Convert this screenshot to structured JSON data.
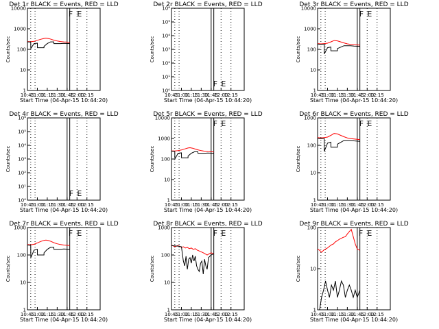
{
  "page": {
    "background": "#ffffff"
  },
  "colors": {
    "events": "#000000",
    "lld": "#ff0000",
    "axes": "#000000"
  },
  "x_tick_labels": [
    "10:45",
    "11:00",
    "11:15",
    "11:30",
    "11:45",
    "12:00",
    "12:15"
  ],
  "x_axis_label": "Start Time (04-Apr-15 10:44:20)",
  "y_axis_label": "Counts/sec",
  "chart_data": [
    {
      "id": "p1",
      "type": "line",
      "title": "Det 1r BLACK = Events, RED = LLD",
      "xlim": [
        0,
        110
      ],
      "ylim": [
        1,
        10000
      ],
      "yscale": "log",
      "ytick_labels": [
        "1",
        "10",
        "100",
        "1000",
        "10000"
      ],
      "vertical_lines": [
        5,
        11.5
      ],
      "bars": [
        60,
        64
      ],
      "markers": [
        "F",
        "E"
      ],
      "marker_x": [
        60,
        73
      ],
      "marker_side": "top",
      "series": [
        {
          "name": "LLD",
          "color": "#ff0000",
          "x": [
            0,
            5,
            10,
            15,
            20,
            25,
            28,
            32,
            36,
            40,
            45,
            50,
            55,
            60,
            64
          ],
          "values": [
            240,
            235,
            245,
            275,
            310,
            340,
            350,
            335,
            310,
            280,
            255,
            240,
            230,
            225,
            220
          ]
        },
        {
          "name": "Events",
          "color": "#000000",
          "x": [
            0,
            5,
            5.1,
            10,
            15,
            15.1,
            25,
            25.1,
            30,
            35,
            40,
            40.1,
            50,
            55,
            64
          ],
          "values": [
            230,
            225,
            110,
            190,
            200,
            120,
            120,
            140,
            190,
            230,
            230,
            190,
            190,
            195,
            190
          ]
        }
      ]
    },
    {
      "id": "p2",
      "type": "line",
      "title": "Det 2r BLACK = Events, RED = LLD",
      "xlim": [
        0,
        110
      ],
      "ylim": [
        1,
        1000000
      ],
      "yscale": "log",
      "ytick_labels": [
        "10⁰",
        "10¹",
        "10²",
        "10³",
        "10⁴",
        "10⁵",
        "10⁶"
      ],
      "vertical_lines": [
        5,
        11.5
      ],
      "bars": [
        60,
        64
      ],
      "markers": [
        "F",
        "E"
      ],
      "marker_x": [
        61,
        73
      ],
      "marker_side": "bottom",
      "series": []
    },
    {
      "id": "p3",
      "type": "line",
      "title": "Det 3r BLACK = Events, RED = LLD",
      "xlim": [
        0,
        110
      ],
      "ylim": [
        1,
        10000
      ],
      "yscale": "log",
      "ytick_labels": [
        "1",
        "10",
        "100",
        "1000",
        "10000"
      ],
      "vertical_lines": [
        5,
        11.5
      ],
      "bars": [
        60,
        64
      ],
      "markers": [
        "F",
        "E"
      ],
      "marker_x": [
        61,
        73
      ],
      "marker_side": "top",
      "series": [
        {
          "name": "LLD",
          "color": "#ff0000",
          "x": [
            0,
            5,
            10,
            15,
            20,
            25,
            30,
            35,
            40,
            45,
            50,
            55,
            60,
            64
          ],
          "values": [
            190,
            185,
            190,
            200,
            230,
            270,
            260,
            230,
            205,
            185,
            175,
            170,
            165,
            160
          ]
        },
        {
          "name": "Events",
          "color": "#000000",
          "x": [
            0,
            5,
            10,
            10.1,
            15,
            20,
            20.1,
            30,
            30.1,
            40,
            50,
            55,
            64
          ],
          "values": [
            180,
            175,
            180,
            60,
            120,
            130,
            85,
            85,
            110,
            150,
            150,
            145,
            140
          ]
        }
      ]
    },
    {
      "id": "p4",
      "type": "line",
      "title": "Det 4r BLACK = Events, RED = LLD",
      "xlim": [
        0,
        110
      ],
      "ylim": [
        1,
        1000000
      ],
      "yscale": "log",
      "ytick_labels": [
        "10⁰",
        "10¹",
        "10²",
        "10³",
        "10⁴",
        "10⁵",
        "10⁶"
      ],
      "vertical_lines": [
        5,
        11.5
      ],
      "bars": [
        60,
        64
      ],
      "markers": [
        "F",
        "E"
      ],
      "marker_x": [
        61,
        73
      ],
      "marker_side": "bottom",
      "series": []
    },
    {
      "id": "p5",
      "type": "line",
      "title": "Det 5r BLACK = Events, RED = LLD",
      "xlim": [
        0,
        110
      ],
      "ylim": [
        1,
        10000
      ],
      "yscale": "log",
      "ytick_labels": [
        "1",
        "10",
        "100",
        "1000",
        "10000"
      ],
      "vertical_lines": [
        5,
        11.5
      ],
      "bars": [
        60,
        64
      ],
      "markers": [
        "F",
        "E"
      ],
      "marker_x": [
        61,
        73
      ],
      "marker_side": "top",
      "series": [
        {
          "name": "LLD",
          "color": "#ff0000",
          "x": [
            0,
            5,
            10,
            15,
            20,
            25,
            28,
            32,
            36,
            40,
            45,
            50,
            55,
            60,
            64
          ],
          "values": [
            250,
            245,
            255,
            275,
            310,
            345,
            355,
            335,
            305,
            280,
            255,
            240,
            230,
            225,
            220
          ]
        },
        {
          "name": "Events",
          "color": "#000000",
          "x": [
            0,
            5,
            5.1,
            10,
            15,
            15.1,
            25,
            25.1,
            30,
            35,
            40,
            40.1,
            50,
            55,
            64
          ],
          "values": [
            240,
            235,
            100,
            190,
            200,
            115,
            115,
            140,
            190,
            225,
            225,
            190,
            190,
            195,
            190
          ]
        }
      ]
    },
    {
      "id": "p6",
      "type": "line",
      "title": "Det 6r BLACK = Events, RED = LLD",
      "xlim": [
        0,
        110
      ],
      "ylim": [
        1,
        1000
      ],
      "yscale": "log",
      "ytick_labels": [
        "1",
        "10",
        "100",
        "1000"
      ],
      "vertical_lines": [
        5,
        11.5
      ],
      "bars": [
        60,
        64
      ],
      "markers": [
        "F",
        "E"
      ],
      "marker_x": [
        61,
        73
      ],
      "marker_side": "top",
      "series": [
        {
          "name": "LLD",
          "color": "#ff0000",
          "x": [
            0,
            5,
            10,
            15,
            20,
            25,
            30,
            35,
            40,
            45,
            50,
            55,
            60,
            64
          ],
          "values": [
            190,
            185,
            190,
            200,
            230,
            270,
            260,
            230,
            205,
            185,
            175,
            170,
            165,
            160
          ]
        },
        {
          "name": "Events",
          "color": "#000000",
          "x": [
            0,
            5,
            10,
            10.1,
            15,
            20,
            20.1,
            30,
            30.1,
            40,
            50,
            55,
            64
          ],
          "values": [
            180,
            175,
            180,
            60,
            120,
            130,
            85,
            85,
            110,
            150,
            150,
            145,
            140
          ]
        }
      ]
    },
    {
      "id": "p7",
      "type": "line",
      "title": "Det 7r BLACK = Events, RED = LLD",
      "xlim": [
        0,
        110
      ],
      "ylim": [
        1,
        1000
      ],
      "yscale": "log",
      "ytick_labels": [
        "1",
        "10",
        "100",
        "1000"
      ],
      "vertical_lines": [
        5,
        11.5
      ],
      "bars": [
        60,
        64
      ],
      "markers": [
        "F",
        "E"
      ],
      "marker_x": [
        60,
        73
      ],
      "marker_side": "top",
      "series": [
        {
          "name": "LLD",
          "color": "#ff0000",
          "x": [
            0,
            5,
            10,
            15,
            20,
            25,
            28,
            32,
            36,
            40,
            45,
            50,
            55,
            60,
            64
          ],
          "values": [
            240,
            235,
            245,
            275,
            310,
            340,
            350,
            335,
            310,
            280,
            255,
            240,
            230,
            225,
            220
          ]
        },
        {
          "name": "Events",
          "color": "#000000",
          "x": [
            0,
            5,
            5.1,
            10,
            15,
            15.1,
            25,
            25.1,
            30,
            35,
            40,
            40.1,
            50,
            55,
            64
          ],
          "values": [
            230,
            225,
            80,
            150,
            160,
            100,
            100,
            120,
            160,
            190,
            190,
            160,
            160,
            165,
            160
          ]
        }
      ]
    },
    {
      "id": "p8",
      "type": "line",
      "title": "Det 8r BLACK = Events, RED = LLD",
      "xlim": [
        0,
        110
      ],
      "ylim": [
        1,
        1000
      ],
      "yscale": "log",
      "ytick_labels": [
        "1",
        "10",
        "100",
        "1000"
      ],
      "vertical_lines": [
        5,
        11.5
      ],
      "bars": [
        60,
        64
      ],
      "markers": [
        "F",
        "E"
      ],
      "marker_x": [
        61,
        73
      ],
      "marker_side": "top",
      "series": [
        {
          "name": "LLD",
          "color": "#ff0000",
          "x": [
            0,
            3,
            6,
            9,
            12,
            15,
            18,
            21,
            24,
            27,
            30,
            33,
            36,
            39,
            42,
            45,
            48,
            51,
            54,
            57,
            60,
            64
          ],
          "values": [
            230,
            210,
            200,
            220,
            210,
            190,
            200,
            180,
            190,
            170,
            180,
            160,
            170,
            150,
            140,
            130,
            120,
            110,
            100,
            110,
            120,
            110
          ]
        },
        {
          "name": "Events",
          "color": "#000000",
          "x": [
            0,
            5,
            10,
            15,
            18,
            20,
            22,
            24,
            26,
            28,
            30,
            32,
            34,
            36,
            38,
            40,
            42,
            44,
            46,
            48,
            50,
            52,
            54,
            56,
            58,
            60,
            64
          ],
          "values": [
            220,
            215,
            210,
            200,
            60,
            40,
            90,
            30,
            70,
            80,
            50,
            100,
            60,
            90,
            40,
            30,
            25,
            50,
            60,
            20,
            70,
            40,
            30,
            80,
            90,
            100,
            110
          ]
        }
      ]
    },
    {
      "id": "p9",
      "type": "line",
      "title": "Det 9r BLACK = Events, RED = LLD",
      "xlim": [
        0,
        110
      ],
      "ylim": [
        1,
        100
      ],
      "yscale": "log",
      "ytick_labels": [
        "1",
        "10",
        "100"
      ],
      "vertical_lines": [
        5,
        11.5
      ],
      "bars": [
        60,
        64
      ],
      "markers": [
        "F",
        "E"
      ],
      "marker_x": [
        60,
        73
      ],
      "marker_side": "top",
      "series": [
        {
          "name": "LLD",
          "color": "#ff0000",
          "x": [
            0,
            3,
            6,
            9,
            12,
            15,
            18,
            21,
            24,
            27,
            30,
            33,
            36,
            39,
            42,
            45,
            48,
            51,
            54,
            57,
            60,
            64
          ],
          "values": [
            30,
            28,
            25,
            28,
            30,
            32,
            35,
            38,
            40,
            45,
            48,
            52,
            55,
            58,
            60,
            70,
            80,
            90,
            60,
            40,
            30,
            28
          ]
        },
        {
          "name": "Events",
          "color": "#000000",
          "x": [
            0,
            3,
            6,
            9,
            12,
            15,
            18,
            21,
            24,
            27,
            30,
            33,
            36,
            39,
            42,
            45,
            48,
            51,
            54,
            57,
            60,
            64
          ],
          "values": [
            1,
            1,
            2,
            3,
            5,
            3,
            2,
            4,
            3,
            5,
            2,
            3,
            5,
            4,
            2,
            3,
            4,
            3,
            2,
            3,
            2,
            3
          ]
        }
      ]
    }
  ]
}
